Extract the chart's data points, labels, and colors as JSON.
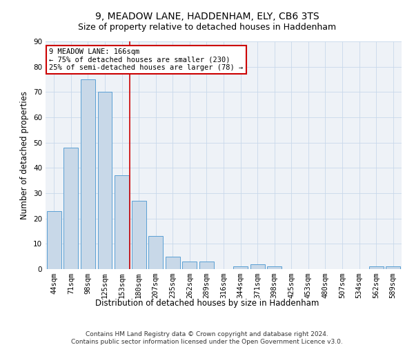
{
  "title": "9, MEADOW LANE, HADDENHAM, ELY, CB6 3TS",
  "subtitle": "Size of property relative to detached houses in Haddenham",
  "xlabel": "Distribution of detached houses by size in Haddenham",
  "ylabel": "Number of detached properties",
  "categories": [
    "44sqm",
    "71sqm",
    "98sqm",
    "125sqm",
    "153sqm",
    "180sqm",
    "207sqm",
    "235sqm",
    "262sqm",
    "289sqm",
    "316sqm",
    "344sqm",
    "371sqm",
    "398sqm",
    "425sqm",
    "453sqm",
    "480sqm",
    "507sqm",
    "534sqm",
    "562sqm",
    "589sqm"
  ],
  "values": [
    23,
    48,
    75,
    70,
    37,
    27,
    13,
    5,
    3,
    3,
    0,
    1,
    2,
    1,
    0,
    0,
    0,
    0,
    0,
    1,
    1
  ],
  "bar_color": "#c8d8e8",
  "bar_edge_color": "#5a9fd4",
  "property_line_color": "#cc0000",
  "annotation_text": "9 MEADOW LANE: 166sqm\n← 75% of detached houses are smaller (230)\n25% of semi-detached houses are larger (78) →",
  "annotation_box_color": "#ffffff",
  "annotation_box_edge": "#cc0000",
  "ylim": [
    0,
    90
  ],
  "yticks": [
    0,
    10,
    20,
    30,
    40,
    50,
    60,
    70,
    80,
    90
  ],
  "grid_color": "#c8d8ea",
  "background_color": "#eef2f7",
  "footer_line1": "Contains HM Land Registry data © Crown copyright and database right 2024.",
  "footer_line2": "Contains public sector information licensed under the Open Government Licence v3.0.",
  "title_fontsize": 10,
  "subtitle_fontsize": 9,
  "xlabel_fontsize": 8.5,
  "ylabel_fontsize": 8.5,
  "tick_fontsize": 7.5,
  "annotation_fontsize": 7.5,
  "footer_fontsize": 6.5
}
